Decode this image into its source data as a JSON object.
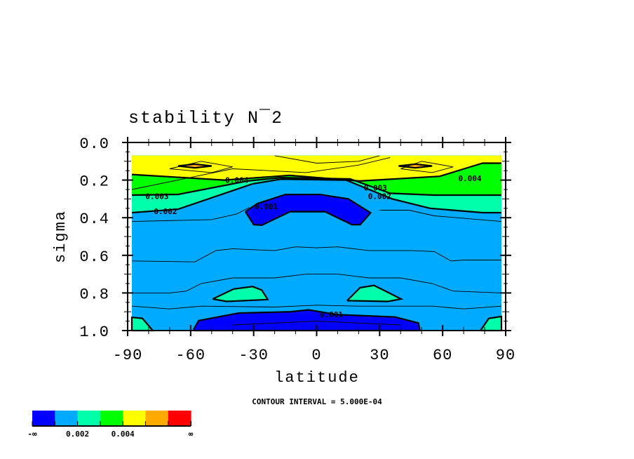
{
  "chart_data": {
    "type": "contour",
    "title": "stability N¯2",
    "xlabel": "latitude",
    "ylabel": "sigma",
    "xlim": [
      -90,
      90
    ],
    "ylim": [
      0.0,
      1.0
    ],
    "y_inverted": true,
    "xticks": [
      -90,
      -60,
      -30,
      0,
      30,
      60,
      90
    ],
    "xtick_labels": [
      "-90",
      "-60",
      "-30",
      "0",
      "30",
      "60",
      "90"
    ],
    "yticks": [
      0.0,
      0.2,
      0.4,
      0.6,
      0.8,
      1.0
    ],
    "ytick_labels": [
      "0.0",
      "0.2",
      "0.4",
      "0.6",
      "0.8",
      "1.0"
    ],
    "contour_interval_text": "CONTOUR INTERVAL = 5.000E-04",
    "data_extent": {
      "lat": [
        -88,
        88
      ],
      "sigma": [
        0.07,
        1.0
      ]
    },
    "background_level_color": "#00aaff",
    "filled_regions": [
      {
        "name": "above-0.002",
        "color": "#00ffaa",
        "top": true,
        "boundary": [
          [
            -88,
            0.373
          ],
          [
            -66,
            0.355
          ],
          [
            -30.5,
            0.22
          ],
          [
            -17,
            0.195
          ],
          [
            14,
            0.2
          ],
          [
            36,
            0.3
          ],
          [
            54,
            0.35
          ],
          [
            79,
            0.373
          ],
          [
            88,
            0.373
          ]
        ]
      },
      {
        "name": "above-0.003",
        "color": "#00ff00",
        "top": true,
        "boundary": [
          [
            -88,
            0.28
          ],
          [
            -66,
            0.276
          ],
          [
            -33,
            0.205
          ],
          [
            -17,
            0.187
          ],
          [
            16,
            0.194
          ],
          [
            35,
            0.27
          ],
          [
            56,
            0.28
          ],
          [
            88,
            0.28
          ]
        ]
      },
      {
        "name": "above-0.004",
        "color": "#ffff00",
        "top": true,
        "boundary": [
          [
            -88,
            0.17
          ],
          [
            -44,
            0.2
          ],
          [
            -13,
            0.175
          ],
          [
            20.5,
            0.205
          ],
          [
            58.6,
            0.18
          ],
          [
            74,
            0.127
          ],
          [
            79,
            0.11
          ],
          [
            88,
            0.11
          ]
        ]
      },
      {
        "name": "orange-blob-left",
        "color": "#ffaa00",
        "polygon": [
          [
            -66,
            0.125
          ],
          [
            -58,
            0.115
          ],
          [
            -50,
            0.125
          ],
          [
            -58,
            0.135
          ]
        ]
      },
      {
        "name": "orange-blob-right",
        "color": "#ffaa00",
        "polygon": [
          [
            39,
            0.125
          ],
          [
            47,
            0.115
          ],
          [
            55,
            0.125
          ],
          [
            47,
            0.135
          ]
        ]
      },
      {
        "name": "below-0.001-upper",
        "color": "#0000ff",
        "polygon": [
          [
            -33.9,
            0.368
          ],
          [
            -30,
            0.437
          ],
          [
            -26.1,
            0.44
          ],
          [
            -12.7,
            0.368
          ],
          [
            4.0,
            0.368
          ],
          [
            16.8,
            0.437
          ],
          [
            20.7,
            0.437
          ],
          [
            25.7,
            0.374
          ],
          [
            15.1,
            0.3
          ],
          [
            1.8,
            0.277
          ],
          [
            -15,
            0.277
          ],
          [
            -28.3,
            0.325
          ]
        ]
      },
      {
        "name": "below-0.001-lower",
        "color": "#0000ff",
        "polygon": [
          [
            -58.4,
            1.0
          ],
          [
            -58.4,
            0.99
          ],
          [
            -56.2,
            0.947
          ],
          [
            -37.2,
            0.907
          ],
          [
            -12.7,
            0.9
          ],
          [
            -3.8,
            0.89
          ],
          [
            9.5,
            0.915
          ],
          [
            37.4,
            0.928
          ],
          [
            48.5,
            0.96
          ],
          [
            49,
            0.99
          ],
          [
            49,
            1.0
          ]
        ]
      },
      {
        "name": "teal-blob-left",
        "color": "#00ffaa",
        "polygon": [
          [
            -49.5,
            0.832
          ],
          [
            -39.5,
            0.779
          ],
          [
            -30.5,
            0.766
          ],
          [
            -26.1,
            0.785
          ],
          [
            -23.3,
            0.835
          ],
          [
            -42.8,
            0.845
          ]
        ]
      },
      {
        "name": "teal-blob-right",
        "color": "#00ffaa",
        "polygon": [
          [
            14.5,
            0.841
          ],
          [
            20.7,
            0.772
          ],
          [
            27.3,
            0.76
          ],
          [
            34,
            0.797
          ],
          [
            40.2,
            0.832
          ],
          [
            34,
            0.845
          ]
        ]
      },
      {
        "name": "teal-corner-left",
        "color": "#00ffaa",
        "polygon": [
          [
            -88,
            1.0
          ],
          [
            -88,
            0.93
          ],
          [
            -83,
            0.935
          ],
          [
            -78,
            1.0
          ]
        ]
      },
      {
        "name": "teal-corner-right",
        "color": "#00ffaa",
        "polygon": [
          [
            78,
            1.0
          ],
          [
            82,
            0.935
          ],
          [
            88,
            0.925
          ],
          [
            88,
            1.0
          ]
        ]
      }
    ],
    "thin_contours": [
      [
        [
          -88,
          0.42
        ],
        [
          -50,
          0.41
        ],
        [
          -38,
          0.38
        ],
        [
          -32,
          0.345
        ]
      ],
      [
        [
          30,
          0.36
        ],
        [
          44,
          0.36
        ],
        [
          56,
          0.39
        ],
        [
          88,
          0.42
        ]
      ],
      [
        [
          -88,
          0.63
        ],
        [
          -58,
          0.635
        ],
        [
          -48,
          0.575
        ],
        [
          -40,
          0.565
        ],
        [
          -20,
          0.575
        ],
        [
          -10,
          0.555
        ],
        [
          0,
          0.56
        ],
        [
          10,
          0.555
        ],
        [
          25,
          0.575
        ],
        [
          45,
          0.575
        ],
        [
          56,
          0.58
        ],
        [
          64,
          0.63
        ],
        [
          70,
          0.625
        ],
        [
          88,
          0.625
        ]
      ],
      [
        [
          -88,
          0.8
        ],
        [
          -80,
          0.8
        ],
        [
          -70,
          0.8
        ],
        [
          -62,
          0.79
        ],
        [
          -55,
          0.75
        ],
        [
          -40,
          0.72
        ],
        [
          -20,
          0.72
        ],
        [
          -5,
          0.7
        ],
        [
          10,
          0.7
        ],
        [
          25,
          0.72
        ],
        [
          40,
          0.72
        ],
        [
          55,
          0.75
        ],
        [
          65,
          0.79
        ],
        [
          88,
          0.8
        ]
      ],
      [
        [
          -88,
          0.87
        ],
        [
          -70,
          0.885
        ],
        [
          -55,
          0.87
        ],
        [
          -20,
          0.875
        ],
        [
          0,
          0.865
        ],
        [
          20,
          0.87
        ],
        [
          55,
          0.87
        ],
        [
          70,
          0.885
        ],
        [
          88,
          0.87
        ]
      ],
      [
        [
          -88,
          0.25
        ],
        [
          -40,
          0.14
        ],
        [
          -5,
          0.16
        ],
        [
          20,
          0.12
        ],
        [
          35,
          0.08
        ]
      ],
      [
        [
          -70,
          0.14
        ],
        [
          -55,
          0.1
        ],
        [
          -40,
          0.13
        ],
        [
          -50,
          0.16
        ],
        [
          -70,
          0.14
        ]
      ],
      [
        [
          40,
          0.14
        ],
        [
          50,
          0.1
        ],
        [
          65,
          0.13
        ],
        [
          55,
          0.16
        ],
        [
          40,
          0.14
        ]
      ],
      [
        [
          -20,
          0.07
        ],
        [
          0,
          0.11
        ],
        [
          20,
          0.1
        ],
        [
          30,
          0.07
        ]
      ],
      [
        [
          -40,
          0.97
        ],
        [
          0,
          0.95
        ],
        [
          40,
          0.97
        ]
      ]
    ],
    "thick_contours_color": "#000000",
    "contour_labels": [
      {
        "text": "0.004",
        "lat": -38,
        "sigma": 0.2
      },
      {
        "text": "0.003",
        "lat": -76,
        "sigma": 0.285
      },
      {
        "text": "0.002",
        "lat": -72,
        "sigma": 0.365
      },
      {
        "text": "0.001",
        "lat": -24,
        "sigma": 0.34
      },
      {
        "text": "0.003",
        "lat": 28,
        "sigma": 0.24
      },
      {
        "text": "0.002",
        "lat": 30,
        "sigma": 0.285
      },
      {
        "text": "0.004",
        "lat": 73,
        "sigma": 0.19
      },
      {
        "text": "0.001",
        "lat": 7,
        "sigma": 0.915
      }
    ],
    "colorbar": {
      "colors": [
        "#0000ff",
        "#00aaff",
        "#00ffaa",
        "#00ff00",
        "#ffff00",
        "#ffaa00",
        "#ff0000"
      ],
      "labels": [
        "-∞",
        "0.002",
        "0.004",
        "∞"
      ]
    }
  }
}
